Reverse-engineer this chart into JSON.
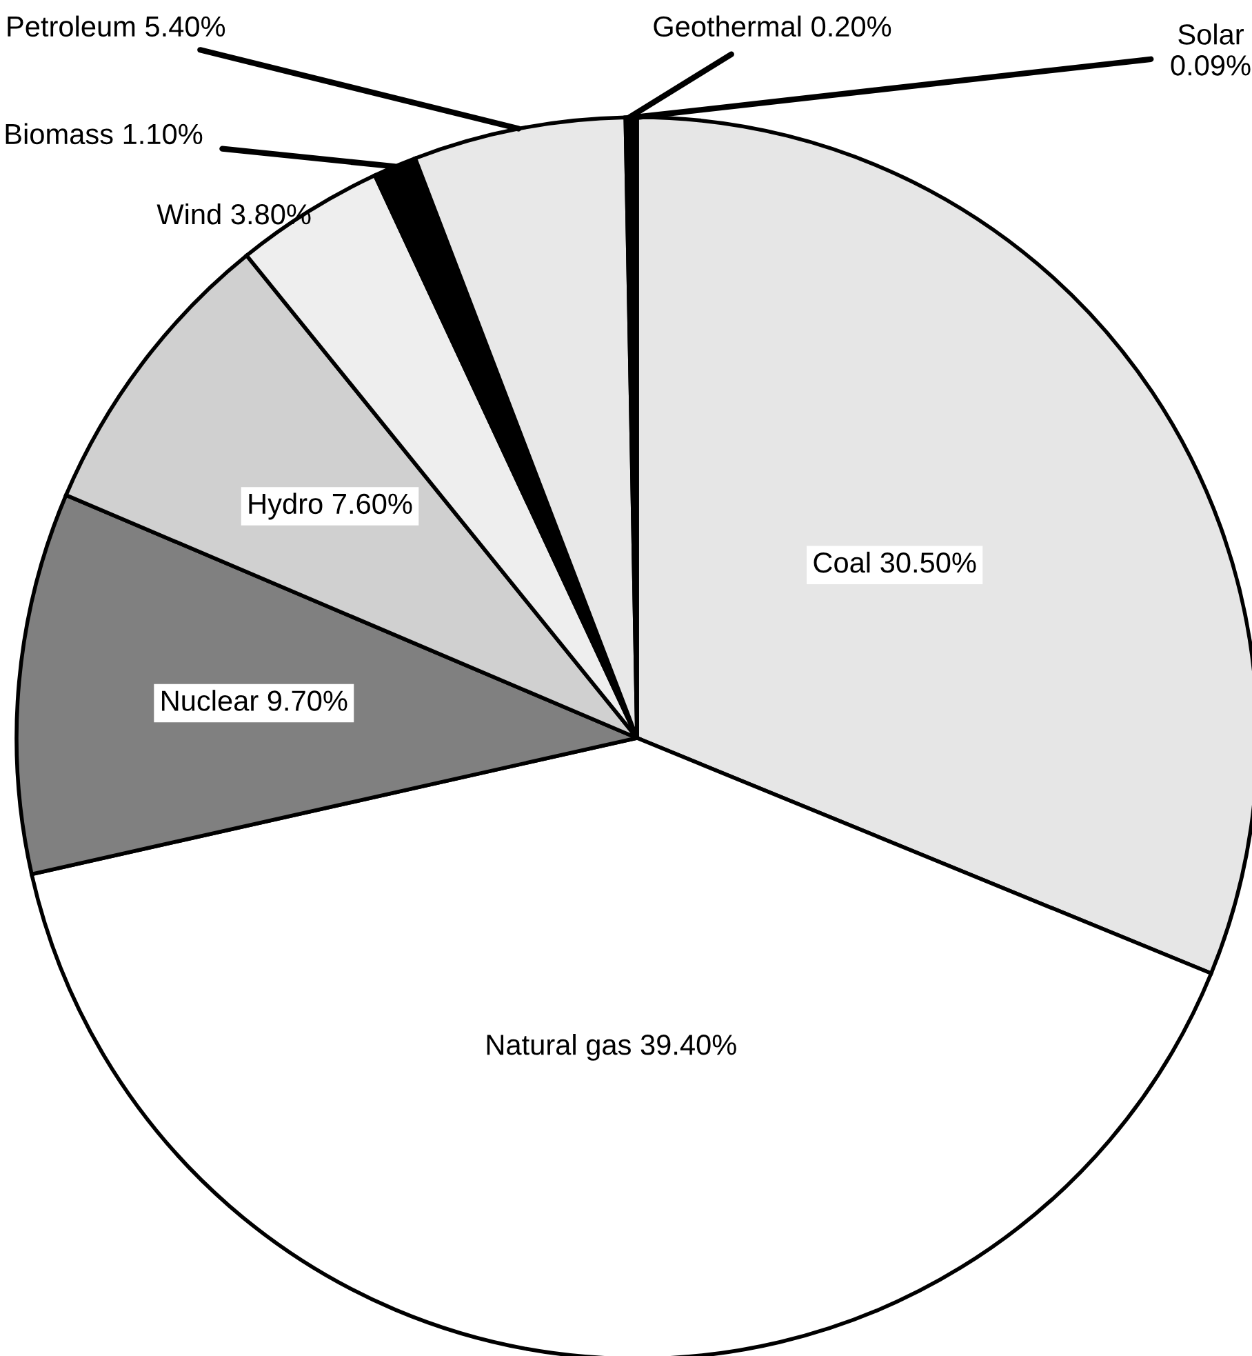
{
  "chart_data": {
    "type": "pie",
    "categories": [
      "Coal",
      "Natural gas",
      "Nuclear",
      "Hydro",
      "Wind",
      "Biomass",
      "Petroleum",
      "Geothermal",
      "Solar"
    ],
    "values": [
      30.5,
      39.4,
      9.7,
      7.6,
      3.8,
      1.1,
      5.4,
      0.2,
      0.09
    ],
    "value_labels": [
      "30.50%",
      "39.40%",
      "9.70%",
      "7.60%",
      "3.80%",
      "1.10%",
      "5.40%",
      "0.20%",
      "0.09%"
    ],
    "colors": [
      "#e6e6e6",
      "#ffffff",
      "#808080",
      "#d0d0d0",
      "#eeeeee",
      "#000000",
      "#e8e8e8",
      "#000000",
      "#ffffff"
    ]
  }
}
